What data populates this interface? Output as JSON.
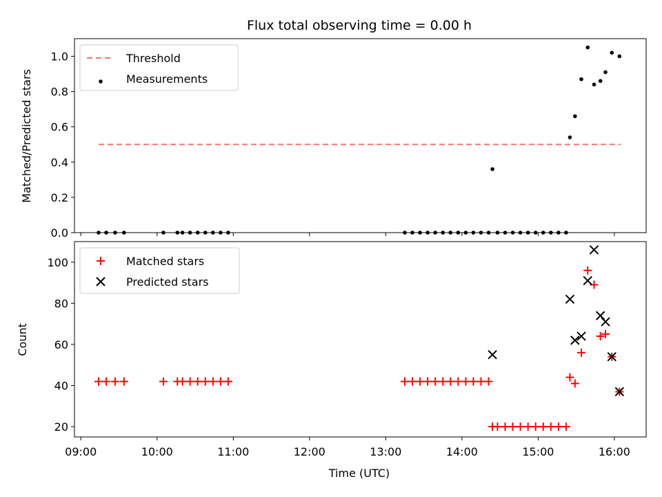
{
  "chart_data": [
    {
      "type": "scatter",
      "title": "Flux total observing time = 0.00 h",
      "xlabel": "",
      "ylabel": "Matched/Predicted stars",
      "xlim": [
        "08:55",
        "16:25"
      ],
      "ylim": [
        0.0,
        1.1
      ],
      "yticks": [
        "0.0",
        "0.2",
        "0.4",
        "0.6",
        "0.8",
        "1.0"
      ],
      "grid": false,
      "legend_position": "top-left",
      "series": [
        {
          "name": "Threshold",
          "style": "dashed-line",
          "color": "#ff7070",
          "points": [
            [
              "09:14",
              0.5
            ],
            [
              "16:05",
              0.5
            ]
          ]
        },
        {
          "name": "Measurements",
          "style": "dot",
          "color": "#000000",
          "points": [
            [
              "09:14",
              0
            ],
            [
              "09:20",
              0
            ],
            [
              "09:27",
              0
            ],
            [
              "09:34",
              0
            ],
            [
              "10:05",
              0
            ],
            [
              "10:16",
              0
            ],
            [
              "10:20",
              0
            ],
            [
              "10:26",
              0
            ],
            [
              "10:32",
              0
            ],
            [
              "10:38",
              0
            ],
            [
              "10:44",
              0
            ],
            [
              "10:50",
              0
            ],
            [
              "10:56",
              0
            ],
            [
              "13:15",
              0
            ],
            [
              "13:21",
              0
            ],
            [
              "13:27",
              0
            ],
            [
              "13:33",
              0
            ],
            [
              "13:39",
              0
            ],
            [
              "13:45",
              0
            ],
            [
              "13:51",
              0
            ],
            [
              "13:57",
              0
            ],
            [
              "14:03",
              0
            ],
            [
              "14:09",
              0
            ],
            [
              "14:15",
              0
            ],
            [
              "14:21",
              0
            ],
            [
              "14:24",
              0.36
            ],
            [
              "14:28",
              0
            ],
            [
              "14:34",
              0
            ],
            [
              "14:40",
              0
            ],
            [
              "14:46",
              0
            ],
            [
              "14:52",
              0
            ],
            [
              "14:58",
              0
            ],
            [
              "15:04",
              0
            ],
            [
              "15:10",
              0
            ],
            [
              "15:16",
              0
            ],
            [
              "15:22",
              0
            ],
            [
              "15:25",
              0.54
            ],
            [
              "15:29",
              0.66
            ],
            [
              "15:34",
              0.87
            ],
            [
              "15:39",
              1.05
            ],
            [
              "15:44",
              0.84
            ],
            [
              "15:49",
              0.86
            ],
            [
              "15:53",
              0.91
            ],
            [
              "15:58",
              1.02
            ],
            [
              "16:04",
              1.0
            ]
          ]
        }
      ]
    },
    {
      "type": "scatter",
      "title": "",
      "xlabel": "Time (UTC)",
      "ylabel": "Count",
      "xlim": [
        "08:55",
        "16:25"
      ],
      "ylim": [
        15,
        110
      ],
      "xticks": [
        "09:00",
        "10:00",
        "11:00",
        "12:00",
        "13:00",
        "14:00",
        "15:00",
        "16:00"
      ],
      "yticks": [
        "20",
        "40",
        "60",
        "80",
        "100"
      ],
      "grid": false,
      "legend_position": "top-left",
      "series": [
        {
          "name": "Matched stars",
          "style": "plus",
          "color": "#ff0000",
          "points": [
            [
              "09:14",
              42
            ],
            [
              "09:20",
              42
            ],
            [
              "09:27",
              42
            ],
            [
              "09:34",
              42
            ],
            [
              "10:05",
              42
            ],
            [
              "10:16",
              42
            ],
            [
              "10:20",
              42
            ],
            [
              "10:26",
              42
            ],
            [
              "10:32",
              42
            ],
            [
              "10:38",
              42
            ],
            [
              "10:44",
              42
            ],
            [
              "10:50",
              42
            ],
            [
              "10:56",
              42
            ],
            [
              "13:15",
              42
            ],
            [
              "13:21",
              42
            ],
            [
              "13:27",
              42
            ],
            [
              "13:33",
              42
            ],
            [
              "13:39",
              42
            ],
            [
              "13:45",
              42
            ],
            [
              "13:51",
              42
            ],
            [
              "13:57",
              42
            ],
            [
              "14:03",
              42
            ],
            [
              "14:09",
              42
            ],
            [
              "14:15",
              42
            ],
            [
              "14:21",
              42
            ],
            [
              "14:24",
              20
            ],
            [
              "14:28",
              20
            ],
            [
              "14:34",
              20
            ],
            [
              "14:40",
              20
            ],
            [
              "14:46",
              20
            ],
            [
              "14:52",
              20
            ],
            [
              "14:58",
              20
            ],
            [
              "15:04",
              20
            ],
            [
              "15:10",
              20
            ],
            [
              "15:16",
              20
            ],
            [
              "15:22",
              20
            ],
            [
              "15:25",
              44
            ],
            [
              "15:29",
              41
            ],
            [
              "15:34",
              56
            ],
            [
              "15:39",
              96
            ],
            [
              "15:44",
              89
            ],
            [
              "15:49",
              64
            ],
            [
              "15:53",
              65
            ],
            [
              "15:58",
              54
            ],
            [
              "16:04",
              37
            ]
          ]
        },
        {
          "name": "Predicted stars",
          "style": "x",
          "color": "#000000",
          "points": [
            [
              "14:24",
              55
            ],
            [
              "15:25",
              82
            ],
            [
              "15:29",
              62
            ],
            [
              "15:34",
              64
            ],
            [
              "15:39",
              91
            ],
            [
              "15:44",
              106
            ],
            [
              "15:49",
              74
            ],
            [
              "15:53",
              71
            ],
            [
              "15:58",
              54
            ],
            [
              "16:04",
              37
            ]
          ]
        }
      ]
    }
  ]
}
